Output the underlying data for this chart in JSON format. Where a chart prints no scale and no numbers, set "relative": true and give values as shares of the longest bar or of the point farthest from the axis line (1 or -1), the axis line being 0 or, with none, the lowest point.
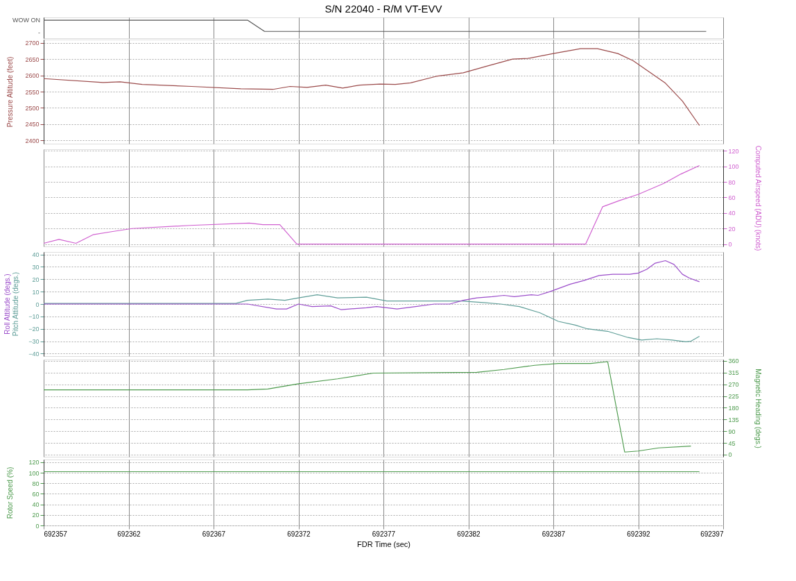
{
  "chart_data": [
    {
      "type": "line",
      "title": "S/N 22040 - R/M VT-EVV",
      "xlim": [
        692357,
        692397
      ],
      "xticks": [
        692357,
        692362,
        692367,
        692372,
        692377,
        692382,
        692387,
        692392,
        692397
      ],
      "tick_labels": "y",
      "grid": true,
      "relative": true,
      "annotations": [
        {
          "text": "WOW ON",
          "x": 692357,
          "y": 1
        },
        "-"
      ],
      "series": [
        {
          "color": "#555555",
          "x": [
            692357,
            692369,
            692370,
            692396
          ],
          "values": [
            1,
            1,
            0,
            0
          ]
        }
      ]
    },
    {
      "type": "line",
      "ylabel": "Pressure Altitude (feet)",
      "xlim": [
        692357,
        692397
      ],
      "xticks": [
        692357,
        692362,
        692367,
        692372,
        692377,
        692382,
        692387,
        692392,
        692397
      ],
      "tick_labels": "y",
      "grid": true,
      "ylim": [
        2390,
        2710
      ],
      "yticks": [
        2400,
        2450,
        2500,
        2550,
        2600,
        2650,
        2700
      ],
      "series": [
        {
          "color": "#9b4a4a",
          "x": [
            692357,
            692360.5,
            692361.5,
            692362.8,
            692365.7,
            692368.6,
            692370.5,
            692371.5,
            692372.5,
            692373.6,
            692374.6,
            692375.6,
            692376.8,
            692377.7,
            692378.6,
            692380.1,
            692381.7,
            692383,
            692384.6,
            692385.5,
            692387,
            692388.6,
            692389.6,
            692390.8,
            692391.7,
            692393.6,
            692394.6,
            692395.6
          ],
          "values": [
            2590,
            2578,
            2580,
            2572,
            2566,
            2559,
            2557,
            2566,
            2563,
            2570,
            2561,
            2570,
            2573,
            2572,
            2577,
            2597,
            2608,
            2627,
            2650,
            2652,
            2667,
            2682,
            2682,
            2667,
            2645,
            2576,
            2521,
            2446
          ]
        }
      ]
    },
    {
      "type": "line",
      "y2label": "Computed Airspeed (ADU) (knots)",
      "xlim": [
        692357,
        692397
      ],
      "xticks": [
        692357,
        692362,
        692367,
        692372,
        692377,
        692382,
        692387,
        692392,
        692397
      ],
      "tick_labels": "y",
      "grid": true,
      "y2lim": [
        -3,
        122
      ],
      "y2ticks": [
        0,
        20,
        40,
        60,
        80,
        100,
        120
      ],
      "series": [
        {
          "axis": "y2",
          "color": "#d060d0",
          "x": [
            692357,
            692357.9,
            692358.9,
            692359.9,
            692361,
            692362.2,
            692365.6,
            692369.1,
            692369.9,
            692370.9,
            692371.9,
            692388.9,
            692389.9,
            692390.9,
            692392,
            692393.5,
            692394.5,
            692395.6
          ],
          "values": [
            1,
            6,
            1,
            12,
            16,
            20,
            24,
            27,
            25,
            25,
            0,
            0,
            48,
            56,
            64,
            78,
            90,
            101
          ]
        }
      ]
    },
    {
      "type": "line",
      "xlim": [
        692357,
        692397
      ],
      "xticks": [
        692357,
        692362,
        692367,
        692372,
        692377,
        692382,
        692387,
        692392,
        692397
      ],
      "tick_labels": "y",
      "grid": true,
      "ylim": [
        -42,
        42
      ],
      "yticks": [
        -40,
        -30,
        -20,
        -10,
        0,
        10,
        20,
        30,
        40
      ],
      "series": [
        {
          "name": "Pitch Attitude (degs.)",
          "color": "#5f9e98",
          "x": [
            692357,
            692368.3,
            692369,
            692370.2,
            692371.2,
            692372,
            692373.1,
            692374.3,
            692376,
            692377.2,
            692381.6,
            692383,
            692383.9,
            692385,
            692386.2,
            692387.3,
            692388.3,
            692389,
            692390.2,
            692391.4,
            692392.2,
            692393.1,
            692394,
            692394.8,
            692395.1,
            692395.6
          ],
          "values": [
            0.5,
            0.5,
            3,
            4,
            3,
            5,
            7.5,
            5,
            5.5,
            2.5,
            2.5,
            1,
            0,
            -2,
            -7,
            -14,
            -17,
            -20,
            -22,
            -27,
            -29,
            -28,
            -29,
            -30.5,
            -30,
            -26
          ]
        },
        {
          "name": "Roll Attitude (degs.)",
          "color": "#9b4dca",
          "x": [
            692357,
            692369,
            692370.7,
            692371.3,
            692372,
            692372.8,
            692373.9,
            692374.5,
            692376,
            692376.6,
            692377.8,
            692378.9,
            692380,
            692380.9,
            692381.7,
            692382.5,
            692383.4,
            692384.1,
            692384.7,
            692385.7,
            692386.1,
            692386.8,
            692388,
            692388.8,
            692389.7,
            692390.5,
            692391.5,
            692392,
            692392.5,
            692393,
            692393.6,
            692394.1,
            692394.6,
            692395,
            692395.6
          ],
          "values": [
            0,
            0,
            -4,
            -4,
            0,
            -2,
            -1.5,
            -4.5,
            -3,
            -2,
            -4,
            -2,
            0,
            0,
            3,
            5,
            6,
            7,
            6,
            7.5,
            7,
            10,
            16,
            19,
            23,
            24,
            24,
            25,
            28,
            33,
            35,
            32,
            24,
            21,
            18
          ]
        }
      ]
    },
    {
      "type": "line",
      "y2label": "Magnetic Heading (degs.)",
      "xlim": [
        692357,
        692397
      ],
      "xticks": [
        692357,
        692362,
        692367,
        692372,
        692377,
        692382,
        692387,
        692392,
        692397
      ],
      "tick_labels": "y",
      "grid": true,
      "y2lim": [
        -8,
        365
      ],
      "y2ticks": [
        0,
        45,
        90,
        135,
        180,
        225,
        270,
        315,
        360
      ],
      "series": [
        {
          "axis": "y2",
          "color": "#4c9a4c",
          "x": [
            692357,
            692369,
            692370.2,
            692372,
            692374.3,
            692376.4,
            692382.5,
            692384.1,
            692385.9,
            692387.3,
            692389.2,
            692390.2,
            692391.2,
            692392,
            692393.2,
            692395.1
          ],
          "values": [
            249,
            249,
            252,
            272,
            291,
            313,
            316,
            327,
            343,
            350,
            350,
            357,
            10,
            14,
            26,
            33
          ]
        }
      ]
    },
    {
      "type": "line",
      "ylabel": "Rotor Speed (%)",
      "xlabel": "FDR Time (sec)",
      "xlim": [
        692357,
        692397
      ],
      "xticks": [
        692357,
        692362,
        692367,
        692372,
        692377,
        692382,
        692387,
        692392,
        692397
      ],
      "grid": true,
      "ylim": [
        0,
        125
      ],
      "yticks": [
        0,
        20,
        40,
        60,
        80,
        100,
        120
      ],
      "series": [
        {
          "color": "#4c9a4c",
          "x": [
            692357,
            692370,
            692376,
            692395.6
          ],
          "values": [
            102,
            102,
            102,
            102
          ]
        }
      ]
    }
  ]
}
